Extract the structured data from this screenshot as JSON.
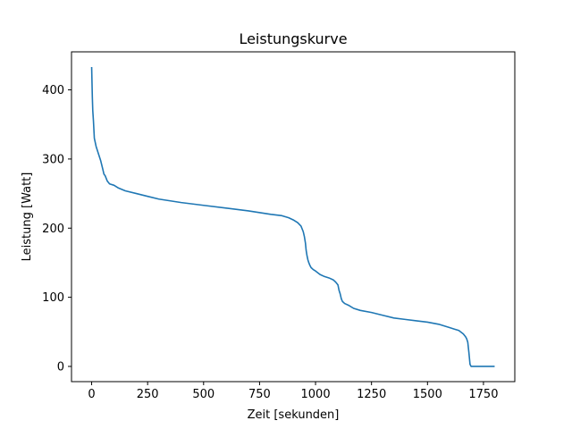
{
  "chart_data": {
    "type": "line",
    "title": "Leistungskurve",
    "xlabel": "Zeit [sekunden]",
    "ylabel": "Leistung [Watt]",
    "xlim": [
      -90,
      1890
    ],
    "ylim": [
      -22,
      455
    ],
    "xticks": [
      0,
      250,
      500,
      750,
      1000,
      1250,
      1500,
      1750
    ],
    "yticks": [
      0,
      100,
      200,
      300,
      400
    ],
    "grid": false,
    "legend": "none",
    "series": [
      {
        "color": "#1f77b4",
        "x": [
          0,
          3,
          5,
          8,
          12,
          20,
          30,
          40,
          50,
          55,
          60,
          65,
          70,
          80,
          100,
          120,
          150,
          200,
          250,
          300,
          400,
          500,
          600,
          700,
          800,
          850,
          880,
          900,
          920,
          935,
          945,
          950,
          955,
          958,
          962,
          966,
          970,
          975,
          980,
          990,
          1000,
          1020,
          1040,
          1060,
          1080,
          1090,
          1100,
          1105,
          1110,
          1115,
          1120,
          1130,
          1150,
          1170,
          1200,
          1250,
          1300,
          1350,
          1400,
          1450,
          1500,
          1550,
          1600,
          1620,
          1640,
          1660,
          1670,
          1675,
          1680,
          1685,
          1690,
          1695,
          1700,
          1750,
          1800
        ],
        "y": [
          433,
          390,
          370,
          355,
          330,
          318,
          308,
          298,
          285,
          278,
          276,
          272,
          268,
          264,
          262,
          258,
          254,
          250,
          246,
          242,
          237,
          233,
          229,
          225,
          220,
          218,
          215,
          212,
          208,
          203,
          195,
          188,
          178,
          168,
          160,
          154,
          150,
          146,
          143,
          140,
          138,
          133,
          130,
          128,
          125,
          122,
          118,
          110,
          105,
          98,
          94,
          91,
          88,
          84,
          81,
          78,
          74,
          70,
          68,
          66,
          64,
          61,
          56,
          54,
          52,
          47,
          43,
          40,
          35,
          20,
          3,
          0,
          0,
          0,
          0
        ]
      }
    ]
  }
}
